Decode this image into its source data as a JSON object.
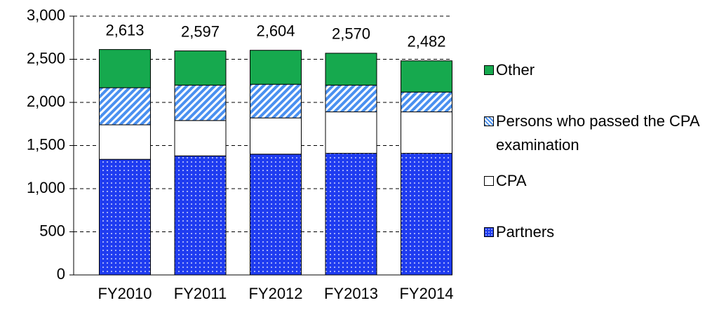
{
  "chart_data": {
    "type": "stacked_bar",
    "categories": [
      "FY2010",
      "FY2011",
      "FY2012",
      "FY2013",
      "FY2014"
    ],
    "series": [
      {
        "name": "Partners",
        "color": "#1f3cf0",
        "pattern": "dots",
        "values": [
          1340,
          1380,
          1400,
          1410,
          1410
        ]
      },
      {
        "name": "CPA",
        "color": "#ffffff",
        "values": [
          400,
          410,
          420,
          480,
          480
        ]
      },
      {
        "name": "Persons who passed the CPA examination",
        "color": "#4a90f0",
        "pattern": "stripes",
        "values": [
          430,
          410,
          390,
          310,
          230
        ]
      },
      {
        "name": "Other",
        "color": "#16a94e",
        "values": [
          443,
          397,
          394,
          370,
          362
        ]
      }
    ],
    "totals": {
      "values": [
        2613,
        2597,
        2604,
        2570,
        2482
      ],
      "value_labels": [
        "2,613",
        "2,597",
        "2,604",
        "2,570",
        "2,482"
      ]
    },
    "ylim": [
      0,
      3000
    ],
    "yticks": [
      0,
      500,
      {
        "value": 1000,
        "label": "1,000"
      },
      {
        "value": 1500,
        "label": "1,500"
      },
      {
        "value": 2000,
        "label": "2,000"
      },
      {
        "value": 2500,
        "label": "2,500"
      },
      {
        "value": 3000,
        "label": "3,000"
      }
    ],
    "grid": true,
    "legend": "right"
  }
}
